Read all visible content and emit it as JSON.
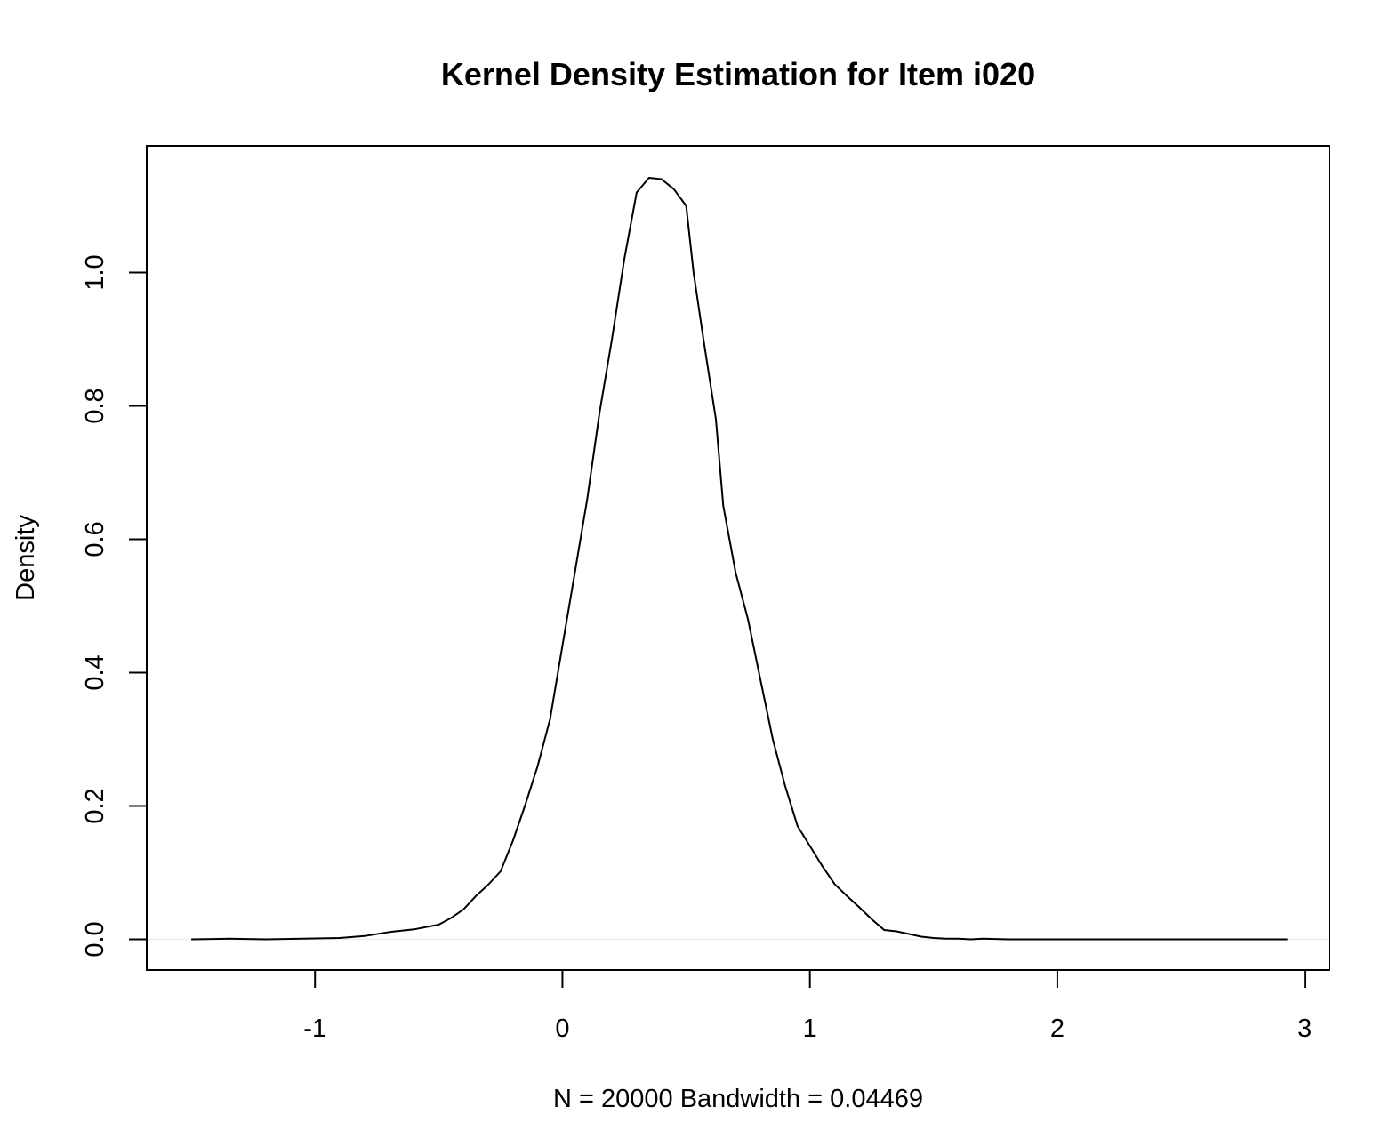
{
  "chart_data": {
    "type": "line",
    "title": "Kernel Density Estimation for Item i020",
    "xlabel": "N = 20000   Bandwidth = 0.04469",
    "ylabel": "Density",
    "xlim": [
      -1.68,
      3.1
    ],
    "ylim": [
      -0.046,
      1.19
    ],
    "x_ticks": [
      -1,
      0,
      1,
      2,
      3
    ],
    "x_tick_labels": [
      "-1",
      "0",
      "1",
      "2",
      "3"
    ],
    "y_ticks": [
      0.0,
      0.2,
      0.4,
      0.6,
      0.8,
      1.0
    ],
    "y_tick_labels": [
      "0.0",
      "0.2",
      "0.4",
      "0.6",
      "0.8",
      "1.0"
    ],
    "grid": false,
    "series": [
      {
        "x": [
          -1.5,
          -1.35,
          -1.2,
          -1.05,
          -0.9,
          -0.8,
          -0.7,
          -0.6,
          -0.5,
          -0.45,
          -0.4,
          -0.35,
          -0.3,
          -0.25,
          -0.2,
          -0.15,
          -0.1,
          -0.05,
          0.0,
          0.05,
          0.1,
          0.15,
          0.2,
          0.25,
          0.3,
          0.35,
          0.4,
          0.45,
          0.5,
          0.53,
          0.57,
          0.62,
          0.65,
          0.7,
          0.75,
          0.8,
          0.85,
          0.9,
          0.95,
          1.0,
          1.05,
          1.1,
          1.15,
          1.2,
          1.25,
          1.3,
          1.35,
          1.4,
          1.45,
          1.5,
          1.55,
          1.6,
          1.65,
          1.7,
          1.8,
          1.9,
          2.0,
          2.1,
          2.2,
          2.3,
          2.4,
          2.5,
          2.6,
          2.7,
          2.8,
          2.93
        ],
        "y": [
          0.0,
          0.001,
          0.0,
          0.001,
          0.002,
          0.005,
          0.011,
          0.015,
          0.022,
          0.032,
          0.045,
          0.065,
          0.082,
          0.102,
          0.148,
          0.202,
          0.26,
          0.33,
          0.44,
          0.55,
          0.66,
          0.79,
          0.9,
          1.02,
          1.12,
          1.142,
          1.14,
          1.125,
          1.1,
          1.0,
          0.9,
          0.78,
          0.65,
          0.55,
          0.48,
          0.39,
          0.3,
          0.23,
          0.17,
          0.14,
          0.11,
          0.083,
          0.065,
          0.048,
          0.03,
          0.014,
          0.012,
          0.008,
          0.004,
          0.002,
          0.001,
          0.001,
          0.0,
          0.001,
          0.0,
          0.0,
          0.0,
          0.0,
          0.0,
          0.0,
          0.0,
          0.0,
          0.0,
          0.0,
          0.0,
          0.0
        ]
      }
    ]
  }
}
